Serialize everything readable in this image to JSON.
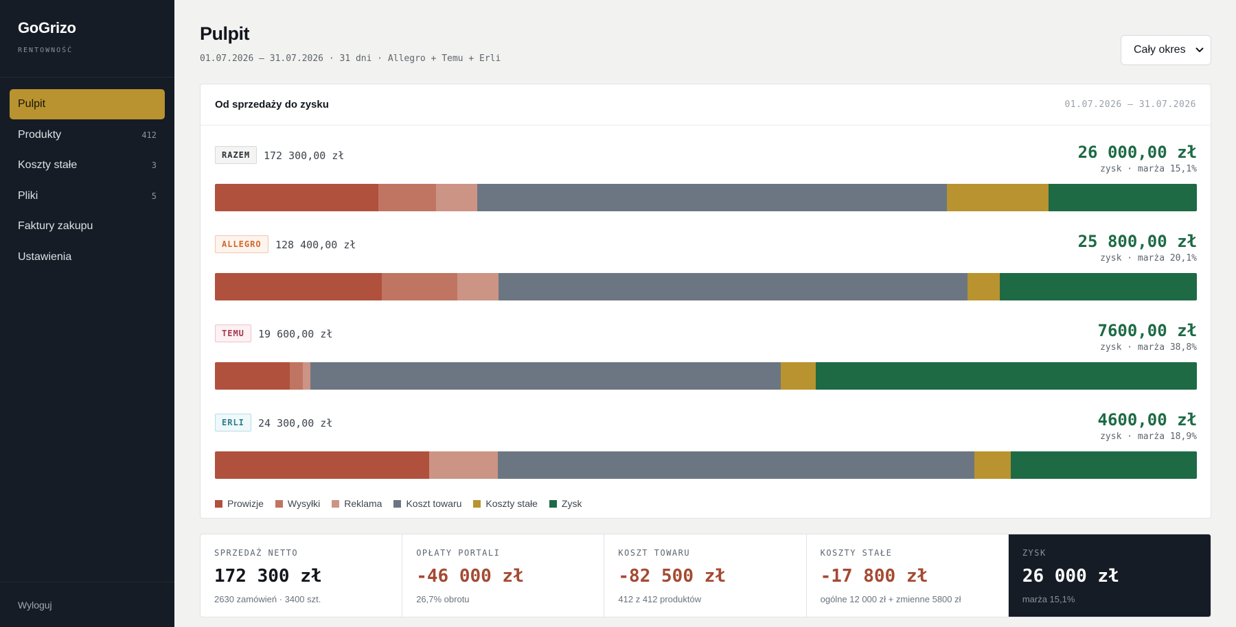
{
  "sidebar": {
    "brand": "GoGrizo",
    "brand_sub": "RENTOWNOŚĆ",
    "items": [
      {
        "label": "Pulpit",
        "count": ""
      },
      {
        "label": "Produkty",
        "count": "412"
      },
      {
        "label": "Koszty stałe",
        "count": "3"
      },
      {
        "label": "Pliki",
        "count": "5"
      },
      {
        "label": "Faktury zakupu",
        "count": ""
      },
      {
        "label": "Ustawienia",
        "count": ""
      }
    ],
    "logout": "Wyloguj"
  },
  "header": {
    "title": "Pulpit",
    "subtitle": "01.07.2026 – 31.07.2026 · 31 dni · Allegro + Temu + Erli",
    "period_select": "Cały okres"
  },
  "card": {
    "title": "Od sprzedaży do zysku",
    "range": "01.07.2026 – 31.07.2026",
    "rows": [
      {
        "badge": "RAZEM",
        "amount": "172 300,00 zł",
        "profit": "26 000,00 zł",
        "margin": "zysk · marża 15,1%"
      },
      {
        "badge": "ALLEGRO",
        "amount": "128 400,00 zł",
        "profit": "25 800,00 zł",
        "margin": "zysk · marża 20,1%"
      },
      {
        "badge": "TEMU",
        "amount": "19 600,00 zł",
        "profit": "7600,00 zł",
        "margin": "zysk · marża 38,8%"
      },
      {
        "badge": "ERLI",
        "amount": "24 300,00 zł",
        "profit": "4600,00 zł",
        "margin": "zysk · marża 18,9%"
      }
    ],
    "legend": [
      "Prowizje",
      "Wysyłki",
      "Reklama",
      "Koszt towaru",
      "Koszty stałe",
      "Zysk"
    ]
  },
  "colors": {
    "prowizje": "#b0513d",
    "wysylki": "#c07562",
    "reklama": "#cc9484",
    "koszt_towaru": "#6c7682",
    "koszty_stale": "#b9932f",
    "zysk": "#1d6a45",
    "accent": "#b9932f",
    "sidebar_bg": "#161c25"
  },
  "chart_data": {
    "type": "bar",
    "stacked": true,
    "orientation": "horizontal",
    "unit": "zł",
    "categories": [
      "RAZEM",
      "ALLEGRO",
      "TEMU",
      "ERLI"
    ],
    "series": [
      {
        "name": "Prowizje",
        "values": [
          28700,
          21800,
          1500,
          5300
        ]
      },
      {
        "name": "Wysyłki",
        "values": [
          10100,
          9900,
          250,
          0
        ]
      },
      {
        "name": "Reklama",
        "values": [
          7200,
          5400,
          150,
          1700
        ]
      },
      {
        "name": "Koszt towaru",
        "values": [
          82500,
          61300,
          9400,
          11800
        ]
      },
      {
        "name": "Koszty stałe",
        "values": [
          17800,
          4200,
          700,
          900
        ]
      },
      {
        "name": "Zysk",
        "values": [
          26000,
          25800,
          7600,
          4600
        ]
      }
    ]
  },
  "kpis": [
    {
      "label": "SPRZEDAŻ NETTO",
      "value": "172 300 zł",
      "note": "2630 zamówień · 3400 szt."
    },
    {
      "label": "OPŁATY PORTALI",
      "value": "-46 000 zł",
      "note": "26,7% obrotu"
    },
    {
      "label": "KOSZT TOWARU",
      "value": "-82 500 zł",
      "note": "412 z 412 produktów"
    },
    {
      "label": "KOSZTY STAŁE",
      "value": "-17 800 zł",
      "note": "ogólne 12 000 zł + zmienne 5800 zł"
    },
    {
      "label": "ZYSK",
      "value": "26 000 zł",
      "note": "marża 15,1%"
    }
  ]
}
